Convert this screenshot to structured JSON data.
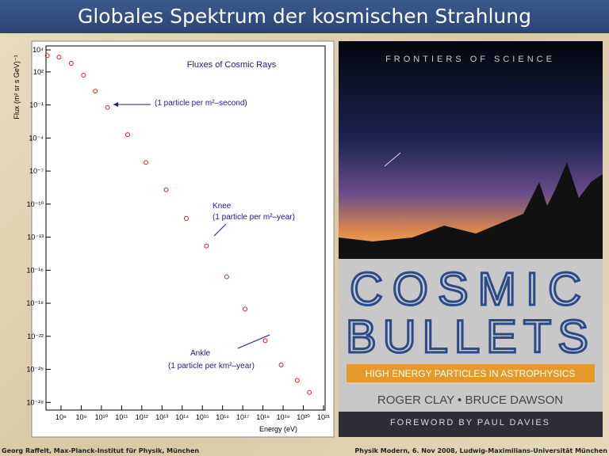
{
  "slide": {
    "title": "Globales Spektrum der kosmischen Strahlung",
    "footer_left": "Georg Raffelt, Max-Planck-Institut für Physik, München",
    "footer_right": "Physik Modern, 6. Nov 2008, Ludwig-Maximilians-Universität München"
  },
  "chart_data": {
    "type": "scatter",
    "title": "Fluxes of Cosmic Rays",
    "x_label": "Energy (eV)",
    "y_label": "Flux (m² sr s GeV)⁻¹",
    "log_x": true,
    "log_y": true,
    "color": "#d62020",
    "x": [
      21000000.0,
      80000000.0,
      320000000.0,
      1300000000.0,
      5000000000.0,
      20000000000.0,
      200000000000.0,
      1600000000000.0,
      16000000000000.0,
      160000000000000.0,
      1600000000000000.0,
      1.6e+16,
      1.3e+17,
      1.3e+18,
      8e+18,
      5e+19,
      2e+20
    ],
    "values": [
      3000.0,
      2200.0,
      600.0,
      50,
      1.8,
      0.06,
      0.0002,
      6e-07,
      2e-09,
      5e-12,
      1.6e-14,
      2.5e-17,
      3e-20,
      4e-23,
      2.5e-25,
      1e-26,
      8e-28
    ],
    "xlim": [
      18000000.0,
      1.2e+21
    ],
    "ylim": [
      2e-29,
      23000.0
    ],
    "xticks": [
      {
        "value": 100000000.0,
        "label": "10⁸"
      },
      {
        "value": 1000000000.0,
        "label": "10⁹"
      },
      {
        "value": 10000000000.0,
        "label": "10¹⁰"
      },
      {
        "value": 100000000000.0,
        "label": "10¹¹"
      },
      {
        "value": 1000000000000.0,
        "label": "10¹²"
      },
      {
        "value": 10000000000000.0,
        "label": "10¹³"
      },
      {
        "value": 100000000000000.0,
        "label": "10¹⁴"
      },
      {
        "value": 1000000000000000.0,
        "label": "10¹⁵"
      },
      {
        "value": 1e+16,
        "label": "10¹⁶"
      },
      {
        "value": 1e+17,
        "label": "10¹⁷"
      },
      {
        "value": 1e+18,
        "label": "10¹⁸"
      },
      {
        "value": 1e+19,
        "label": "10¹⁹"
      },
      {
        "value": 1e+20,
        "label": "10²⁰"
      },
      {
        "value": 1e+21,
        "label": "10²¹"
      }
    ],
    "yticks": [
      {
        "value": 10000.0,
        "label": "10⁴"
      },
      {
        "value": 100.0,
        "label": "10²"
      },
      {
        "value": 0.1,
        "label": "10⁻¹"
      },
      {
        "value": 0.0001,
        "label": "10⁻⁴"
      },
      {
        "value": 1e-07,
        "label": "10⁻⁷"
      },
      {
        "value": 1e-10,
        "label": "10⁻¹⁰"
      },
      {
        "value": 1e-13,
        "label": "10⁻¹³"
      },
      {
        "value": 1e-16,
        "label": "10⁻¹⁶"
      },
      {
        "value": 1e-19,
        "label": "10⁻¹⁹"
      },
      {
        "value": 1e-22,
        "label": "10⁻²²"
      },
      {
        "value": 1e-25,
        "label": "10⁻²⁵"
      },
      {
        "value": 1e-28,
        "label": "10⁻²⁸"
      }
    ],
    "annotations": [
      "(1 particle per m²–second)",
      "Knee",
      "(1 particle per m²–year)",
      "Ankle",
      "(1 particle per km²–year)"
    ]
  },
  "book_cover": {
    "series": "FRONTIERS OF SCIENCE",
    "title_1": "COSMIC",
    "title_2": "BULLETS",
    "subtitle": "HIGH ENERGY PARTICLES IN ASTROPHYSICS",
    "authors": "ROGER CLAY • BRUCE DAWSON",
    "foreword": "FOREWORD BY PAUL DAVIES"
  }
}
